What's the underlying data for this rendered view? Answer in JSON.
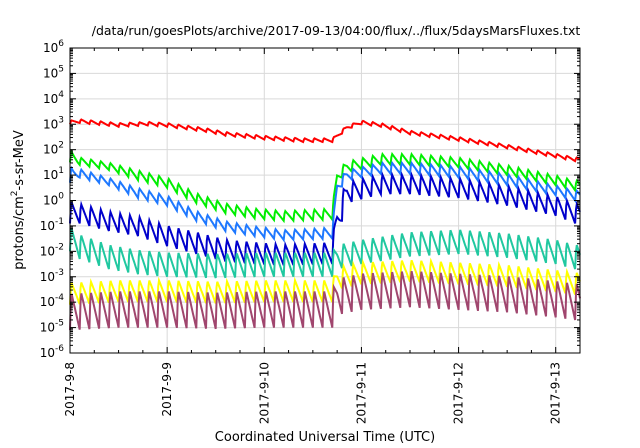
{
  "chart_data": {
    "type": "line",
    "title": "/data/run/goesPlots/archive/2017-09-13/04:00/flux/../flux/5daysMarsFluxes.txt",
    "xlabel": "Coordinated Universal Time (UTC)",
    "ylabel_parts": {
      "main": "protons/cm",
      "sup": "2",
      "rest": "-s-sr-MeV"
    },
    "x_axis": {
      "type": "date",
      "range": [
        "2017-09-08",
        "2017-09-13 06:00"
      ],
      "ticks": [
        "2017-9-8",
        "2017-9-9",
        "2017-9-10",
        "2017-9-11",
        "2017-9-12",
        "2017-9-13"
      ]
    },
    "y_axis": {
      "scale": "log",
      "range": [
        1e-06,
        1000000.0
      ],
      "tick_exponents": [
        -6,
        -5,
        -4,
        -3,
        -2,
        -1,
        0,
        1,
        2,
        3,
        4,
        5,
        6
      ],
      "tick_base": "10"
    },
    "grid": true,
    "legend": "none",
    "oscillation_days": 0.1,
    "series": [
      {
        "color": "#ff0000",
        "upper": [
          [
            0,
            3.15
          ],
          [
            0.1,
            3.2
          ],
          [
            0.5,
            3.05
          ],
          [
            0.8,
            3.1
          ],
          [
            1.0,
            3.05
          ],
          [
            1.4,
            2.85
          ],
          [
            1.6,
            2.7
          ],
          [
            2.0,
            2.55
          ],
          [
            2.4,
            2.45
          ],
          [
            2.7,
            2.45
          ],
          [
            2.85,
            2.95
          ],
          [
            3.0,
            3.15
          ],
          [
            3.2,
            3.05
          ],
          [
            3.5,
            2.75
          ],
          [
            4.0,
            2.5
          ],
          [
            4.5,
            2.2
          ],
          [
            5.2,
            1.7
          ]
        ],
        "lower": [
          [
            0,
            3.0
          ],
          [
            0.1,
            3.05
          ],
          [
            0.5,
            2.9
          ],
          [
            0.8,
            2.95
          ],
          [
            1.0,
            2.9
          ],
          [
            1.4,
            2.7
          ],
          [
            1.6,
            2.55
          ],
          [
            2.0,
            2.4
          ],
          [
            2.4,
            2.3
          ],
          [
            2.7,
            2.3
          ],
          [
            2.85,
            2.8
          ],
          [
            3.0,
            3.0
          ],
          [
            3.2,
            2.9
          ],
          [
            3.5,
            2.6
          ],
          [
            4.0,
            2.35
          ],
          [
            4.5,
            2.05
          ],
          [
            5.2,
            1.55
          ]
        ]
      },
      {
        "color": "#00ee00",
        "upper": [
          [
            0,
            2.0
          ],
          [
            0.1,
            1.7
          ],
          [
            0.4,
            1.5
          ],
          [
            0.7,
            1.2
          ],
          [
            1.0,
            0.9
          ],
          [
            1.3,
            0.3
          ],
          [
            1.6,
            -0.1
          ],
          [
            1.9,
            -0.3
          ],
          [
            2.2,
            -0.4
          ],
          [
            2.7,
            -0.3
          ],
          [
            2.75,
            1.2
          ],
          [
            2.85,
            1.55
          ],
          [
            3.2,
            1.85
          ],
          [
            3.5,
            1.85
          ],
          [
            4.0,
            1.7
          ],
          [
            4.5,
            1.4
          ],
          [
            5.0,
            1.0
          ],
          [
            5.2,
            0.8
          ]
        ],
        "lower": [
          [
            0,
            1.5
          ],
          [
            0.1,
            1.4
          ],
          [
            0.4,
            1.2
          ],
          [
            0.7,
            0.8
          ],
          [
            1.0,
            0.5
          ],
          [
            1.3,
            -0.1
          ],
          [
            1.6,
            -0.5
          ],
          [
            1.9,
            -0.7
          ],
          [
            2.2,
            -0.8
          ],
          [
            2.7,
            -0.75
          ],
          [
            2.75,
            0.7
          ],
          [
            2.85,
            1.1
          ],
          [
            3.2,
            1.4
          ],
          [
            3.5,
            1.4
          ],
          [
            4.0,
            1.3
          ],
          [
            4.5,
            1.0
          ],
          [
            5.0,
            0.6
          ],
          [
            5.2,
            0.4
          ]
        ]
      },
      {
        "color": "#1e78ff",
        "upper": [
          [
            0,
            1.3
          ],
          [
            0.1,
            1.25
          ],
          [
            0.4,
            0.9
          ],
          [
            0.7,
            0.5
          ],
          [
            1.0,
            0.2
          ],
          [
            1.3,
            -0.4
          ],
          [
            1.6,
            -0.8
          ],
          [
            1.9,
            -1.0
          ],
          [
            2.2,
            -1.15
          ],
          [
            2.7,
            -1.05
          ],
          [
            2.75,
            0.8
          ],
          [
            2.85,
            1.2
          ],
          [
            3.2,
            1.5
          ],
          [
            3.5,
            1.5
          ],
          [
            4.0,
            1.35
          ],
          [
            4.5,
            1.05
          ],
          [
            5.0,
            0.6
          ],
          [
            5.2,
            0.4
          ]
        ],
        "lower": [
          [
            0,
            0.7
          ],
          [
            0.1,
            0.9
          ],
          [
            0.4,
            0.6
          ],
          [
            0.7,
            0.1
          ],
          [
            1.0,
            -0.2
          ],
          [
            1.3,
            -0.8
          ],
          [
            1.6,
            -1.2
          ],
          [
            1.9,
            -1.4
          ],
          [
            2.2,
            -1.55
          ],
          [
            2.7,
            -1.5
          ],
          [
            2.75,
            0.3
          ],
          [
            2.85,
            0.8
          ],
          [
            3.2,
            1.05
          ],
          [
            3.5,
            1.05
          ],
          [
            4.0,
            0.9
          ],
          [
            4.5,
            0.6
          ],
          [
            5.0,
            0.2
          ],
          [
            5.2,
            0.0
          ]
        ]
      },
      {
        "color": "#0000cc",
        "upper": [
          [
            0,
            0.0
          ],
          [
            0.1,
            -0.1
          ],
          [
            0.4,
            -0.4
          ],
          [
            0.7,
            -0.6
          ],
          [
            1.0,
            -0.95
          ],
          [
            1.3,
            -1.2
          ],
          [
            1.6,
            -1.5
          ],
          [
            1.9,
            -1.6
          ],
          [
            2.2,
            -1.7
          ],
          [
            2.7,
            -1.6
          ],
          [
            2.75,
            0.0
          ],
          [
            2.85,
            0.75
          ],
          [
            3.2,
            1.05
          ],
          [
            3.5,
            1.05
          ],
          [
            4.0,
            0.9
          ],
          [
            4.5,
            0.6
          ],
          [
            5.0,
            0.2
          ],
          [
            5.2,
            -0.1
          ]
        ],
        "lower": [
          [
            0,
            -0.9
          ],
          [
            0.1,
            -0.9
          ],
          [
            0.4,
            -1.2
          ],
          [
            0.7,
            -1.4
          ],
          [
            1.0,
            -1.8
          ],
          [
            1.3,
            -2.1
          ],
          [
            1.6,
            -2.4
          ],
          [
            1.9,
            -2.5
          ],
          [
            2.2,
            -2.55
          ],
          [
            2.7,
            -2.5
          ],
          [
            2.75,
            -1.5
          ],
          [
            2.85,
            -0.1
          ],
          [
            3.2,
            0.25
          ],
          [
            3.5,
            0.25
          ],
          [
            4.0,
            0.1
          ],
          [
            4.5,
            -0.2
          ],
          [
            5.0,
            -0.6
          ],
          [
            5.2,
            -0.9
          ]
        ]
      },
      {
        "color": "#20c8a0",
        "upper": [
          [
            0,
            -1.0
          ],
          [
            0.1,
            -1.3
          ],
          [
            0.4,
            -1.7
          ],
          [
            0.7,
            -1.9
          ],
          [
            1.0,
            -2.0
          ],
          [
            1.5,
            -2.05
          ],
          [
            2.0,
            -2.0
          ],
          [
            2.7,
            -2.0
          ],
          [
            2.75,
            -1.7
          ],
          [
            3.0,
            -1.5
          ],
          [
            3.5,
            -1.2
          ],
          [
            4.0,
            -1.1
          ],
          [
            4.5,
            -1.25
          ],
          [
            5.0,
            -1.5
          ],
          [
            5.2,
            -1.7
          ]
        ],
        "lower": [
          [
            0,
            -2.0
          ],
          [
            0.1,
            -2.3
          ],
          [
            0.4,
            -2.7
          ],
          [
            0.7,
            -2.9
          ],
          [
            1.0,
            -3.0
          ],
          [
            1.5,
            -3.05
          ],
          [
            2.0,
            -3.0
          ],
          [
            2.7,
            -3.0
          ],
          [
            2.75,
            -2.7
          ],
          [
            3.0,
            -2.5
          ],
          [
            3.5,
            -2.2
          ],
          [
            4.0,
            -2.1
          ],
          [
            4.5,
            -2.25
          ],
          [
            5.0,
            -2.5
          ],
          [
            5.2,
            -2.7
          ]
        ]
      },
      {
        "color": "#ffff00",
        "upper": [
          [
            0,
            -3.2
          ],
          [
            0.5,
            -3.1
          ],
          [
            1.0,
            -3.1
          ],
          [
            1.5,
            -3.15
          ],
          [
            2.0,
            -3.1
          ],
          [
            2.7,
            -3.1
          ],
          [
            2.75,
            -2.6
          ],
          [
            3.0,
            -2.4
          ],
          [
            3.5,
            -2.3
          ],
          [
            4.0,
            -2.4
          ],
          [
            4.5,
            -2.5
          ],
          [
            5.0,
            -2.7
          ],
          [
            5.2,
            -2.8
          ]
        ],
        "lower": [
          [
            0,
            -4.1
          ],
          [
            0.5,
            -4.0
          ],
          [
            1.0,
            -4.0
          ],
          [
            1.5,
            -4.05
          ],
          [
            2.0,
            -4.0
          ],
          [
            2.7,
            -4.0
          ],
          [
            2.75,
            -3.5
          ],
          [
            3.0,
            -3.3
          ],
          [
            3.5,
            -3.2
          ],
          [
            4.0,
            -3.3
          ],
          [
            4.5,
            -3.4
          ],
          [
            5.0,
            -3.6
          ],
          [
            5.2,
            -3.7
          ]
        ]
      },
      {
        "color": "#a0466e",
        "upper": [
          [
            0,
            -3.6
          ],
          [
            0.5,
            -3.5
          ],
          [
            1.0,
            -3.5
          ],
          [
            1.5,
            -3.55
          ],
          [
            2.0,
            -3.5
          ],
          [
            2.7,
            -3.5
          ],
          [
            2.75,
            -3.0
          ],
          [
            3.0,
            -2.8
          ],
          [
            3.5,
            -2.7
          ],
          [
            4.0,
            -2.8
          ],
          [
            4.5,
            -2.9
          ],
          [
            5.0,
            -3.1
          ],
          [
            5.2,
            -3.2
          ]
        ],
        "lower": [
          [
            0,
            -5.1
          ],
          [
            0.5,
            -5.0
          ],
          [
            1.0,
            -5.0
          ],
          [
            1.5,
            -5.05
          ],
          [
            2.0,
            -5.0
          ],
          [
            2.7,
            -5.0
          ],
          [
            2.75,
            -4.5
          ],
          [
            3.0,
            -4.3
          ],
          [
            3.5,
            -4.2
          ],
          [
            4.0,
            -4.3
          ],
          [
            4.5,
            -4.4
          ],
          [
            5.0,
            -4.6
          ],
          [
            5.2,
            -4.7
          ]
        ]
      }
    ]
  }
}
